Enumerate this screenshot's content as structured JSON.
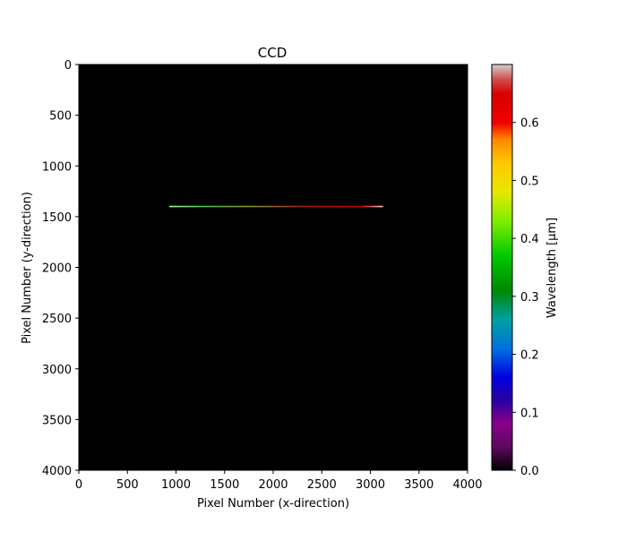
{
  "chart_data": {
    "type": "heatmap",
    "title": "CCD",
    "xlabel": "Pixel Number (x-direction)",
    "ylabel": "Pixel Number (y-direction)",
    "xlim": [
      0,
      4000
    ],
    "ylim": [
      4000,
      0
    ],
    "x_ticks": [
      0,
      500,
      1000,
      1500,
      2000,
      2500,
      3000,
      3500,
      4000
    ],
    "y_ticks": [
      0,
      500,
      1000,
      1500,
      2000,
      2500,
      3000,
      3500,
      4000
    ],
    "background_color": "#000000",
    "grid": false,
    "spectral_line": {
      "y": 1400,
      "x_start": 930,
      "x_end": 3130,
      "color_stops": [
        {
          "x": 930,
          "color": "#a8f0a8"
        },
        {
          "x": 1300,
          "color": "#4cc24c"
        },
        {
          "x": 1800,
          "color": "#8a8a2a"
        },
        {
          "x": 2300,
          "color": "#a02020"
        },
        {
          "x": 2900,
          "color": "#c00000"
        },
        {
          "x": 3130,
          "color": "#ffd0d0"
        }
      ]
    },
    "colorbar": {
      "label": "Wavelength [µm]",
      "range": [
        0,
        0.7
      ],
      "ticks": [
        0.0,
        0.1,
        0.2,
        0.3,
        0.4,
        0.5,
        0.6
      ],
      "tick_labels": [
        "0.0",
        "0.1",
        "0.2",
        "0.3",
        "0.4",
        "0.5",
        "0.6"
      ],
      "color_stops": [
        {
          "v": 0.0,
          "color": "#000000"
        },
        {
          "v": 0.04,
          "color": "#5c0a5c"
        },
        {
          "v": 0.08,
          "color": "#8a008a"
        },
        {
          "v": 0.12,
          "color": "#2a00a0"
        },
        {
          "v": 0.16,
          "color": "#0000e0"
        },
        {
          "v": 0.21,
          "color": "#0070e0"
        },
        {
          "v": 0.26,
          "color": "#00a0a0"
        },
        {
          "v": 0.31,
          "color": "#008800"
        },
        {
          "v": 0.37,
          "color": "#00c800"
        },
        {
          "v": 0.43,
          "color": "#80ee00"
        },
        {
          "v": 0.48,
          "color": "#e8e800"
        },
        {
          "v": 0.53,
          "color": "#ffc800"
        },
        {
          "v": 0.57,
          "color": "#ff8800"
        },
        {
          "v": 0.6,
          "color": "#ee0000"
        },
        {
          "v": 0.65,
          "color": "#d80000"
        },
        {
          "v": 0.675,
          "color": "#d05050"
        },
        {
          "v": 0.7,
          "color": "#d8d0d0"
        }
      ]
    }
  }
}
